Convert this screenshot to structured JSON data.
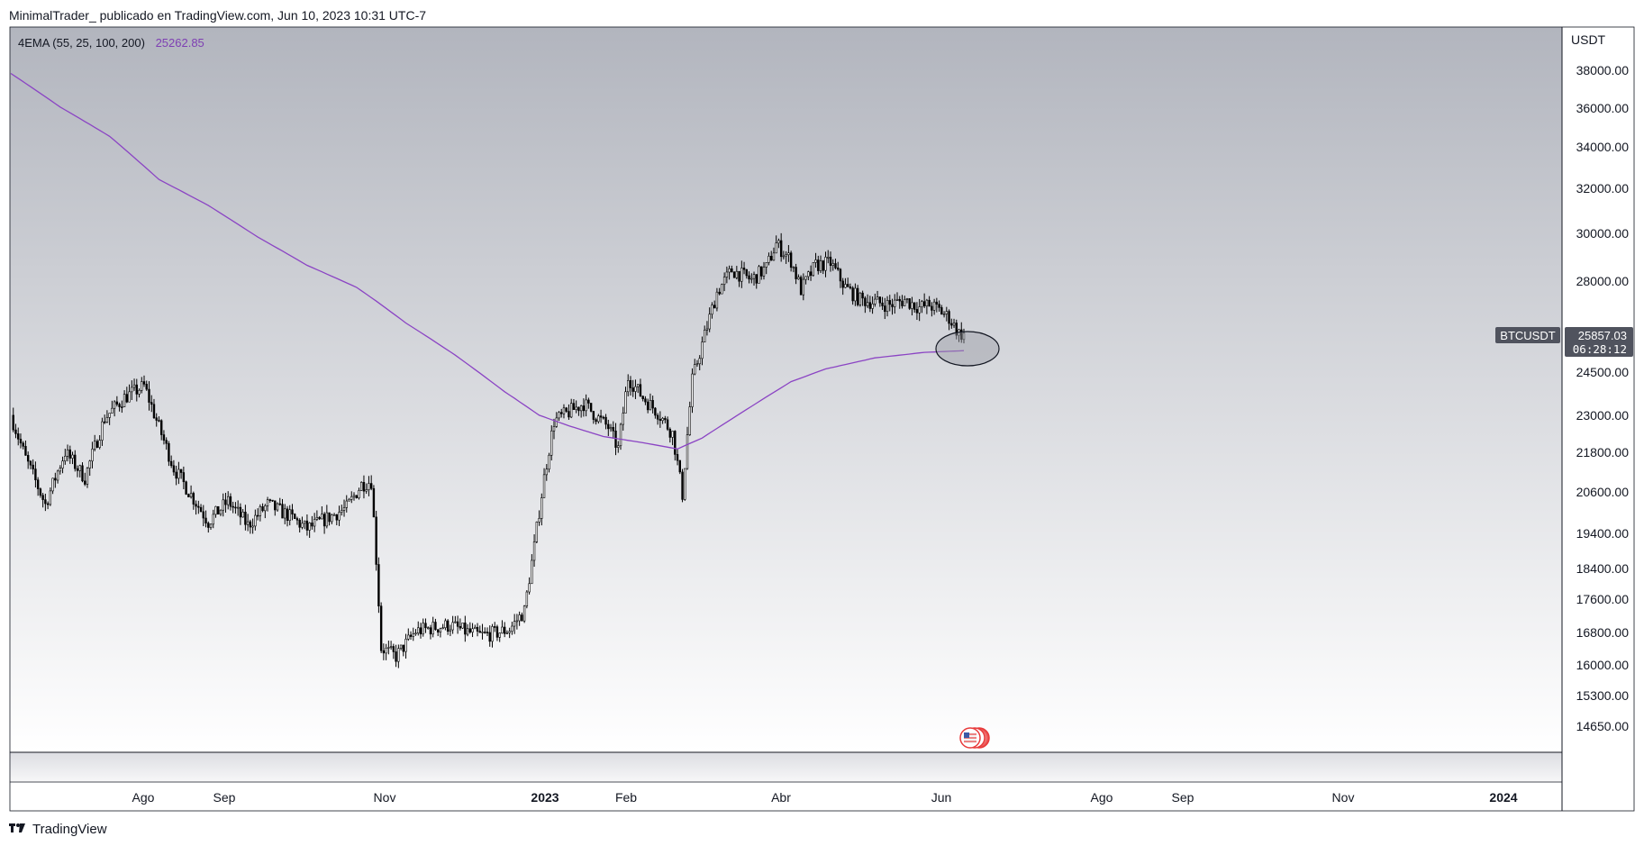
{
  "header": {
    "text": "MinimalTrader_  publicado en TradingView.com, Jun 10, 2023 10:31 UTC-7"
  },
  "footer": {
    "brand": "TradingView"
  },
  "chart_data": {
    "type": "candlestick",
    "symbol": "BTCUSDT",
    "currency": "USDT",
    "scale": "log",
    "legend": {
      "label": "4EMA (55, 25, 100, 200)",
      "value": "25262.85",
      "color": "#7e3fb3"
    },
    "last_price": "25857.03",
    "countdown": "06:28:12",
    "y_ticks": [
      "38000.00",
      "36000.00",
      "34000.00",
      "32000.00",
      "30000.00",
      "28000.00",
      "24500.00",
      "23000.00",
      "21800.00",
      "20600.00",
      "19400.00",
      "18400.00",
      "17600.00",
      "16800.00",
      "16000.00",
      "15300.00",
      "14650.00"
    ],
    "x_ticks": [
      {
        "label": "Ago",
        "bold": false
      },
      {
        "label": "Sep",
        "bold": false
      },
      {
        "label": "Nov",
        "bold": false
      },
      {
        "label": "2023",
        "bold": true
      },
      {
        "label": "Feb",
        "bold": false
      },
      {
        "label": "Abr",
        "bold": false
      },
      {
        "label": "Jun",
        "bold": false
      },
      {
        "label": "Ago",
        "bold": false
      },
      {
        "label": "Sep",
        "bold": false
      },
      {
        "label": "Nov",
        "bold": false
      },
      {
        "label": "2024",
        "bold": true
      }
    ],
    "price_keypoints": [
      [
        0,
        23000
      ],
      [
        6,
        21600
      ],
      [
        14,
        20200
      ],
      [
        22,
        21800
      ],
      [
        30,
        21000
      ],
      [
        38,
        22900
      ],
      [
        46,
        23600
      ],
      [
        54,
        24000
      ],
      [
        60,
        22600
      ],
      [
        66,
        21300
      ],
      [
        72,
        20600
      ],
      [
        80,
        19700
      ],
      [
        88,
        20300
      ],
      [
        96,
        19600
      ],
      [
        104,
        20200
      ],
      [
        112,
        19900
      ],
      [
        120,
        19500
      ],
      [
        128,
        19800
      ],
      [
        136,
        20100
      ],
      [
        142,
        20800
      ],
      [
        146,
        20900
      ],
      [
        150,
        16400
      ],
      [
        156,
        16200
      ],
      [
        164,
        16800
      ],
      [
        172,
        16900
      ],
      [
        178,
        16950
      ],
      [
        184,
        16800
      ],
      [
        190,
        16700
      ],
      [
        196,
        16750
      ],
      [
        202,
        16850
      ],
      [
        208,
        17300
      ],
      [
        212,
        19000
      ],
      [
        216,
        21000
      ],
      [
        220,
        22800
      ],
      [
        226,
        23100
      ],
      [
        232,
        23400
      ],
      [
        238,
        22900
      ],
      [
        242,
        22600
      ],
      [
        246,
        21900
      ],
      [
        250,
        24300
      ],
      [
        256,
        23600
      ],
      [
        262,
        23100
      ],
      [
        268,
        22400
      ],
      [
        272,
        20500
      ],
      [
        276,
        24200
      ],
      [
        280,
        25500
      ],
      [
        286,
        27500
      ],
      [
        292,
        28400
      ],
      [
        300,
        28000
      ],
      [
        306,
        28500
      ],
      [
        310,
        29500
      ],
      [
        316,
        28800
      ],
      [
        320,
        27600
      ],
      [
        326,
        28600
      ],
      [
        332,
        28700
      ],
      [
        338,
        27700
      ],
      [
        344,
        27200
      ],
      [
        350,
        27100
      ],
      [
        356,
        27000
      ],
      [
        362,
        27200
      ],
      [
        368,
        26900
      ],
      [
        372,
        27000
      ],
      [
        376,
        26800
      ],
      [
        380,
        26500
      ],
      [
        384,
        25900
      ],
      [
        386,
        25860
      ]
    ],
    "ema200_keypoints": [
      [
        0,
        37800
      ],
      [
        20,
        36000
      ],
      [
        40,
        34500
      ],
      [
        60,
        32400
      ],
      [
        80,
        31200
      ],
      [
        100,
        29800
      ],
      [
        120,
        28600
      ],
      [
        140,
        27700
      ],
      [
        148,
        27150
      ],
      [
        160,
        26300
      ],
      [
        180,
        25100
      ],
      [
        200,
        23800
      ],
      [
        214,
        23000
      ],
      [
        226,
        22650
      ],
      [
        240,
        22300
      ],
      [
        256,
        22100
      ],
      [
        270,
        21900
      ],
      [
        280,
        22250
      ],
      [
        300,
        23300
      ],
      [
        316,
        24150
      ],
      [
        330,
        24600
      ],
      [
        350,
        25000
      ],
      [
        370,
        25200
      ],
      [
        386,
        25263
      ]
    ],
    "annotations": [
      {
        "type": "ellipse",
        "note": "highlight at EMA touch"
      }
    ],
    "colors": {
      "background_top": "#b2b5be",
      "background_bottom": "#ffffff",
      "candle": "#000000",
      "ema": "#8b44c4",
      "tag_bg": "#50535e"
    }
  }
}
